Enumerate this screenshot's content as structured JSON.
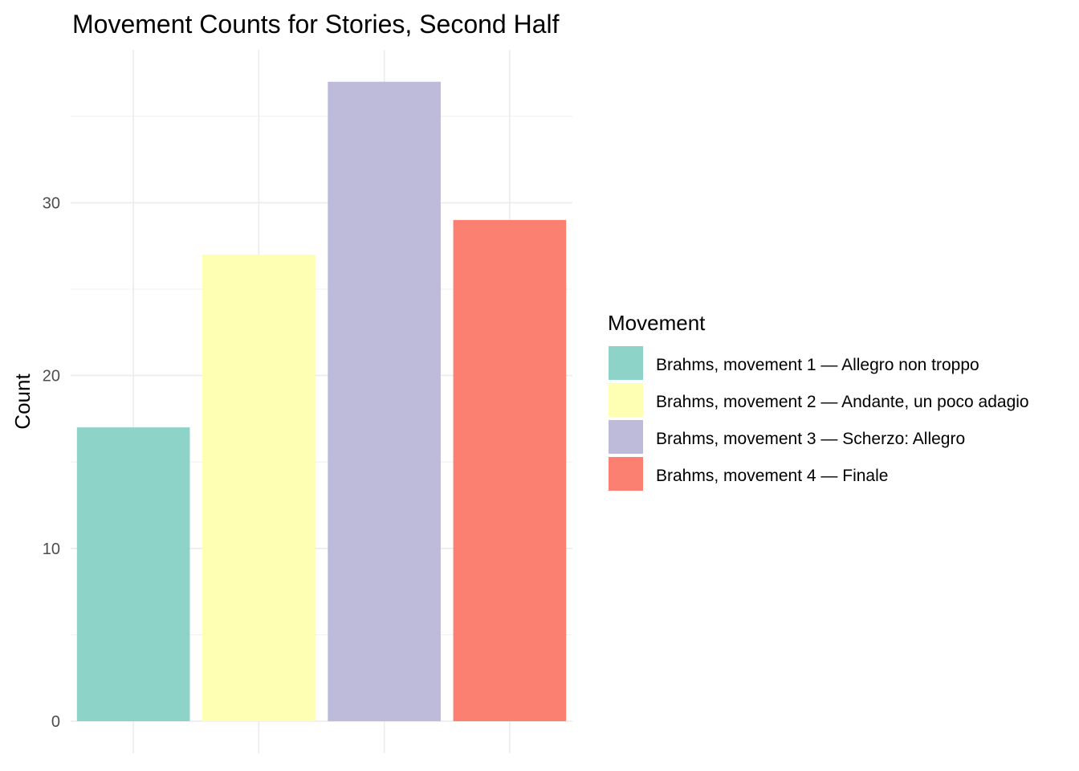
{
  "chart_data": {
    "type": "bar",
    "title": "Movement Counts for Stories, Second Half",
    "xlabel": "",
    "ylabel": "Count",
    "categories": [
      "Brahms, movement 1 — Allegro non troppo",
      "Brahms, movement 2 — Andante, un poco adagio",
      "Brahms, movement 3 — Scherzo: Allegro",
      "Brahms, movement 4 — Finale"
    ],
    "values": [
      17,
      27,
      37,
      29
    ],
    "colors": [
      "#8dd3c7",
      "#ffffb3",
      "#bebada",
      "#fb8072"
    ],
    "ylim": [
      0,
      38.85
    ],
    "yticks": [
      0,
      10,
      20,
      30
    ],
    "grid": true,
    "legend": {
      "title": "Movement",
      "position": "right",
      "items": [
        {
          "label": "Brahms, movement 1 — Allegro non troppo",
          "color": "#8dd3c7"
        },
        {
          "label": "Brahms, movement 2 — Andante, un poco adagio",
          "color": "#ffffb3"
        },
        {
          "label": "Brahms, movement 3 — Scherzo: Allegro",
          "color": "#bebada"
        },
        {
          "label": "Brahms, movement 4 — Finale",
          "color": "#fb8072"
        }
      ]
    }
  }
}
